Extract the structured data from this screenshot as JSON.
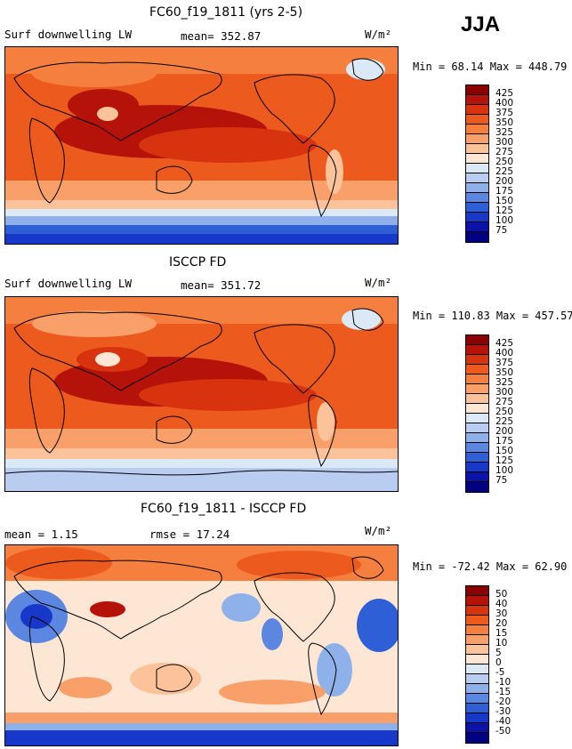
{
  "season": "JJA",
  "panels": [
    {
      "title": "FC60_f19_1811 (yrs 2-5)",
      "left_label": "Surf downwelling LW",
      "mid_label": "mean= 352.87",
      "units": "W/m²",
      "minmax": "Min =  68.14 Max = 448.79",
      "colorbar_labels": [
        "425",
        "400",
        "375",
        "350",
        "325",
        "300",
        "275",
        "250",
        "225",
        "200",
        "175",
        "150",
        "125",
        "100",
        "75"
      ],
      "colorbar_colors": [
        "#8b0000",
        "#b5120a",
        "#d8330f",
        "#ec5a1e",
        "#f57f3e",
        "#f9a06a",
        "#fcc29a",
        "#fde6d3",
        "#dbe9f7",
        "#b8cdf0",
        "#8fb1ea",
        "#5b87e0",
        "#2f5fd7",
        "#1838c9",
        "#0b12a8",
        "#000080"
      ],
      "base_color": "#e4561c"
    },
    {
      "title": "ISCCP FD",
      "left_label": "Surf downwelling LW",
      "mid_label": "mean= 351.72",
      "units": "W/m²",
      "minmax": "Min = 110.83 Max = 457.57",
      "colorbar_labels": [
        "425",
        "400",
        "375",
        "350",
        "325",
        "300",
        "275",
        "250",
        "225",
        "200",
        "175",
        "150",
        "125",
        "100",
        "75"
      ],
      "colorbar_colors": [
        "#8b0000",
        "#b5120a",
        "#d8330f",
        "#ec5a1e",
        "#f57f3e",
        "#f9a06a",
        "#fcc29a",
        "#fde6d3",
        "#dbe9f7",
        "#b8cdf0",
        "#8fb1ea",
        "#5b87e0",
        "#2f5fd7",
        "#1838c9",
        "#0b12a8",
        "#000080"
      ],
      "base_color": "#e4561c"
    },
    {
      "title": "FC60_f19_1811 - ISCCP FD",
      "left_label": "mean =    1.15",
      "mid_label": "rmse =   17.24",
      "units": "W/m²",
      "minmax": "Min = -72.42 Max =  62.90",
      "colorbar_labels": [
        "50",
        "40",
        "30",
        "20",
        "15",
        "10",
        "5",
        "0",
        "-5",
        "-10",
        "-15",
        "-20",
        "-30",
        "-40",
        "-50"
      ],
      "colorbar_colors": [
        "#8b0000",
        "#b5120a",
        "#d8330f",
        "#ec5a1e",
        "#f57f3e",
        "#f9a06a",
        "#fcc29a",
        "#fde6d3",
        "#dbe9f7",
        "#b8cdf0",
        "#8fb1ea",
        "#5b87e0",
        "#2f5fd7",
        "#1838c9",
        "#0b12a8",
        "#000080"
      ],
      "base_color": "#f6a070"
    }
  ]
}
